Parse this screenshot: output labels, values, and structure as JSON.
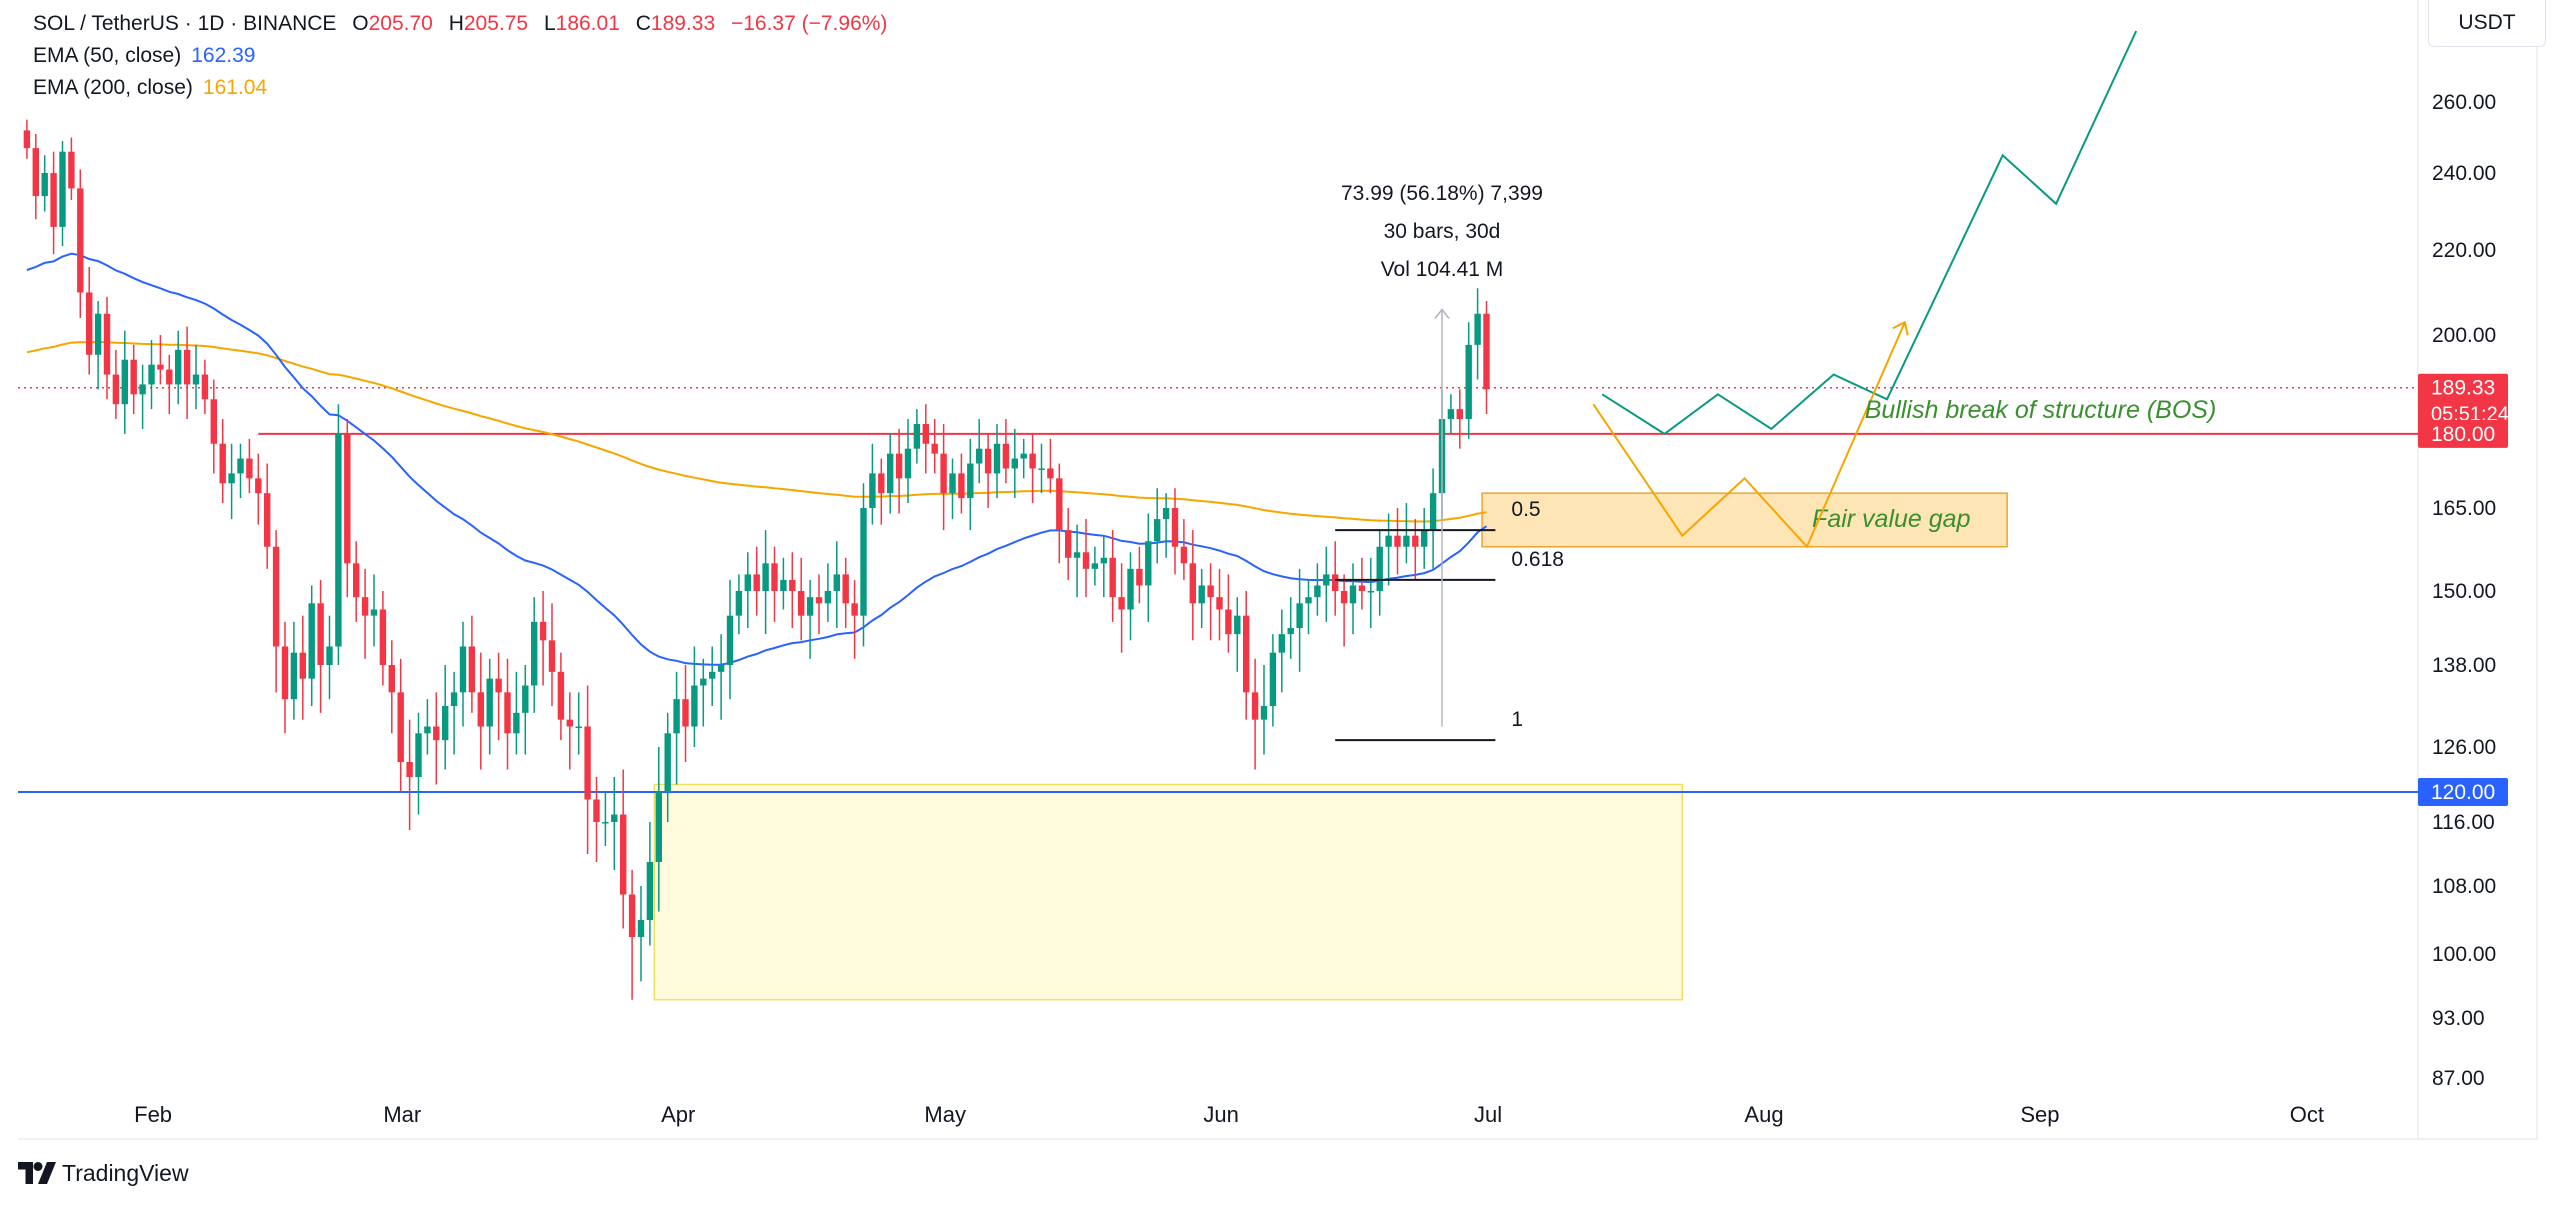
{
  "header": {
    "symbol": "SOL / TetherUS · 1D · BINANCE",
    "open_label": "O",
    "open": "205.70",
    "high_label": "H",
    "high": "205.75",
    "low_label": "L",
    "low": "186.01",
    "close_label": "C",
    "close": "189.33",
    "change": "−16.37 (−7.96%)",
    "ema50_label": "EMA (50, close)",
    "ema50_value": "162.39",
    "ema200_label": "EMA (200, close)",
    "ema200_value": "161.04"
  },
  "currency": "USDT",
  "brand": "TradingView",
  "colors": {
    "up": "#089981",
    "down": "#f23645",
    "ema50": "#2962ff",
    "ema200": "#f7a600",
    "support": "#2962ff",
    "resistance": "#f23645",
    "projection_green": "#089981",
    "projection_orange": "#f7a600",
    "fvg_fill": "#fde4b3",
    "demand_fill": "#fffbdc",
    "annotation_green": "#3a8f2f"
  },
  "chart_data": {
    "type": "candlestick",
    "title": "SOL / TetherUS · 1D · BINANCE",
    "y_axis_ticks": [
      "260.00",
      "240.00",
      "220.00",
      "200.00",
      "165.00",
      "150.00",
      "138.00",
      "126.00",
      "116.00",
      "108.00",
      "100.00",
      "93.00",
      "87.00"
    ],
    "y_tick_values": [
      260,
      240,
      220,
      200,
      165,
      150,
      138,
      126,
      116,
      108,
      100,
      93,
      87
    ],
    "x_axis_labels": [
      "Feb",
      "Mar",
      "Apr",
      "May",
      "Jun",
      "Jul",
      "Aug",
      "Sep",
      "Oct"
    ],
    "x_tick_dates": [
      "2025-02-01",
      "2025-03-01",
      "2025-04-01",
      "2025-05-01",
      "2025-06-01",
      "2025-07-01",
      "2025-08-01",
      "2025-09-01",
      "2025-10-01"
    ],
    "ylim": [
      84,
      275
    ],
    "xlim": [
      "2025-01-23",
      "2025-10-23"
    ],
    "closes": [
      247,
      234,
      240,
      226,
      246,
      236,
      210,
      196,
      205,
      192,
      186,
      195,
      188,
      190,
      194,
      193,
      190,
      197,
      190,
      192,
      187,
      178,
      170,
      172,
      175,
      171,
      168,
      158,
      141,
      133,
      140,
      136,
      148,
      138,
      141,
      180,
      155,
      149,
      146,
      147,
      138,
      134,
      124,
      122,
      128,
      129,
      127,
      132,
      134,
      141,
      134,
      129,
      136,
      134,
      128,
      131,
      135,
      145,
      142,
      137,
      130,
      129,
      129,
      119,
      116,
      116,
      117,
      107,
      102,
      104,
      111,
      120,
      128,
      133,
      129,
      135,
      136,
      137,
      138,
      146,
      150,
      153,
      150,
      155,
      150,
      152,
      150,
      146,
      149,
      148,
      150,
      153,
      148,
      146,
      165,
      172,
      168,
      176,
      171,
      177,
      182,
      178,
      176,
      168,
      172,
      167,
      174,
      177,
      172,
      178,
      173,
      175,
      176,
      173,
      173,
      171,
      161,
      156,
      157,
      154,
      155,
      156,
      149,
      147,
      154,
      151,
      159,
      163,
      165,
      158,
      155,
      148,
      151,
      149,
      147,
      143,
      146,
      134,
      130,
      132,
      140,
      143,
      144,
      148,
      149,
      151,
      153,
      150,
      148,
      151,
      150,
      150,
      158,
      160,
      158,
      160,
      158,
      161,
      168,
      183,
      185,
      183,
      198,
      205,
      189
    ]
  },
  "annotations": {
    "measure": {
      "line1": "73.99 (56.18%) 7,399",
      "line2": "30 bars, 30d",
      "line3": "Vol 104.41 M"
    },
    "fib": [
      {
        "label": "0.5",
        "price": 161
      },
      {
        "label": "0.618",
        "price": 152
      },
      {
        "label": "1",
        "price": 127
      }
    ],
    "bos_text": "Bullish break of structure (BOS)",
    "fvg_text": "Fair value gap",
    "price_tags": [
      {
        "label": "189.33",
        "sub": "05:51:24",
        "price": 189.33,
        "color": "#f23645"
      },
      {
        "label": "180.00",
        "price": 180,
        "color": "#f23645"
      },
      {
        "label": "120.00",
        "price": 120,
        "color": "#2962ff"
      }
    ]
  }
}
